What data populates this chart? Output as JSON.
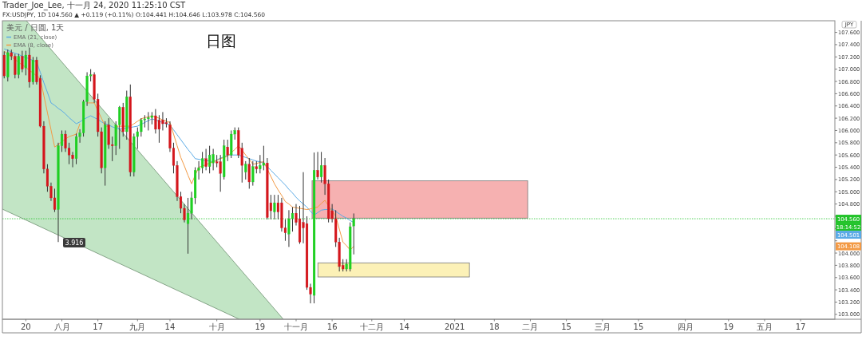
{
  "chart_data": {
    "type": "candlestick",
    "title": "日图",
    "subtitle": "Trader_Joe_Lee, 十一月 24, 2020 11:25:10 CST",
    "ylabel": "JPY",
    "legend_title": "美元 / 日圆, 1天",
    "legend": "top left",
    "annotations": [
      "FX:USDJPY, 1D 104.560 ▲ +0.119 (+0.11%) O:104.441 H:104.646 L:103.978 C:104.560",
      "3.916",
      "18:14:52",
      "104.501",
      "104.108"
    ],
    "ylim": [
      102.92,
      107.79
    ],
    "categories": [
      null,
      null,
      null,
      null,
      null,
      null,
      "20",
      null,
      null,
      null,
      null,
      null,
      null,
      null,
      null,
      null,
      "八月",
      null,
      null,
      null,
      null,
      null,
      null,
      null,
      null,
      null,
      "17",
      null,
      null,
      null,
      null,
      null,
      null,
      null,
      null,
      null,
      null,
      "九月",
      null,
      null,
      null,
      null,
      null,
      null,
      null,
      null,
      "14",
      null,
      null,
      null,
      null,
      null,
      null,
      null,
      null,
      null,
      null,
      null,
      null,
      "十月",
      null,
      null,
      null,
      null,
      null,
      null,
      null,
      null,
      null,
      null,
      null,
      "19",
      null,
      null,
      null,
      null,
      null,
      null,
      null,
      null,
      null,
      "十一月",
      null,
      null,
      null,
      null,
      null,
      null,
      null,
      null,
      null,
      "16",
      null,
      null,
      null,
      null,
      null,
      null,
      null,
      null,
      null,
      null,
      "十二月",
      null,
      null,
      null,
      null,
      null,
      null,
      null,
      null,
      "14",
      null,
      null,
      null,
      null,
      null,
      null,
      null,
      null,
      null,
      null,
      null,
      null,
      null,
      "2021",
      null,
      null,
      null,
      null,
      null,
      null,
      null,
      null,
      null,
      null,
      "18",
      null,
      null,
      null,
      null,
      null,
      null,
      null,
      null,
      null,
      "二月",
      null,
      null,
      null,
      null,
      null,
      null,
      null,
      null,
      null,
      "15",
      null,
      null,
      null,
      null,
      null,
      null,
      null,
      null,
      null,
      "三月",
      null,
      null,
      null,
      null,
      null,
      null,
      null,
      null,
      null,
      "15",
      null,
      null,
      null,
      null,
      null,
      null,
      null,
      null,
      null,
      null,
      null,
      null,
      "四月",
      null,
      null,
      null,
      null,
      null,
      null,
      null,
      null,
      null,
      null,
      null,
      "19",
      null,
      null,
      null,
      null,
      null,
      null,
      null,
      null,
      null,
      "五月",
      null,
      null,
      null,
      null,
      null,
      null,
      null,
      null,
      null,
      "17",
      null,
      null,
      null,
      null,
      null,
      null,
      null,
      null,
      null
    ],
    "yticks": [
      {
        "value": 103.0,
        "label": "103.000"
      },
      {
        "value": 103.2,
        "label": "103.200"
      },
      {
        "value": 103.4,
        "label": "103.400"
      },
      {
        "value": 103.6,
        "label": "103.600"
      },
      {
        "value": 103.8,
        "label": "103.800"
      },
      {
        "value": 104.0,
        "label": "104.000"
      },
      {
        "value": 104.2,
        "label": null
      },
      {
        "value": 104.4,
        "label": null
      },
      {
        "value": 104.6,
        "label": null
      },
      {
        "value": 104.8,
        "label": "104.800"
      },
      {
        "value": 105.0,
        "label": "105.000"
      },
      {
        "value": 105.2,
        "label": "105.200"
      },
      {
        "value": 105.4,
        "label": "105.400"
      },
      {
        "value": 105.6,
        "label": "105.600"
      },
      {
        "value": 105.8,
        "label": "105.800"
      },
      {
        "value": 106.0,
        "label": "106.000"
      },
      {
        "value": 106.2,
        "label": "106.200"
      },
      {
        "value": 106.4,
        "label": "106.400"
      },
      {
        "value": 106.6,
        "label": "106.600"
      },
      {
        "value": 106.8,
        "label": "106.800"
      },
      {
        "value": 107.0,
        "label": "107.000"
      },
      {
        "value": 107.2,
        "label": "107.200"
      },
      {
        "value": 107.4,
        "label": "107.400"
      },
      {
        "value": 107.6,
        "label": "107.600"
      }
    ],
    "ref_lines": [
      {
        "axis": "y",
        "value": 104.56,
        "label": "104.560",
        "color": "#22c32a",
        "line_style": "dotted"
      }
    ],
    "bands": [
      {
        "axis": "y",
        "from": 104.57,
        "to": 105.18,
        "color": "#f4a3a3"
      },
      {
        "axis": "y",
        "from": 103.61,
        "to": 103.84,
        "color": "#fbeeaa"
      }
    ],
    "ohlc": [
      [
        107.23,
        107.29,
        106.85,
        106.89
      ],
      [
        106.87,
        107.32,
        106.8,
        107.27
      ],
      [
        107.27,
        107.32,
        107.15,
        107.21
      ],
      [
        107.21,
        107.25,
        106.85,
        106.91
      ],
      [
        106.91,
        107.25,
        106.85,
        107.21
      ],
      [
        107.21,
        107.3,
        106.95,
        107.0
      ],
      [
        107.02,
        107.3,
        106.9,
        107.23
      ],
      [
        107.23,
        107.35,
        106.7,
        106.79
      ],
      [
        106.79,
        107.2,
        106.75,
        107.15
      ],
      [
        107.15,
        107.2,
        106.75,
        106.79
      ],
      [
        106.85,
        106.9,
        106.05,
        106.07
      ],
      [
        106.07,
        106.15,
        105.3,
        105.37
      ],
      [
        105.37,
        105.45,
        105.0,
        105.09
      ],
      [
        105.09,
        105.15,
        104.85,
        104.9
      ],
      [
        104.9,
        105.05,
        104.67,
        104.71
      ],
      [
        104.71,
        105.8,
        104.18,
        105.75
      ],
      [
        105.75,
        106.0,
        105.65,
        105.94
      ],
      [
        105.94,
        106.0,
        105.65,
        105.71
      ],
      [
        105.71,
        105.8,
        105.45,
        105.6
      ],
      [
        105.6,
        105.65,
        105.4,
        105.54
      ],
      [
        105.54,
        105.95,
        105.45,
        105.9
      ],
      [
        105.9,
        106.02,
        105.8,
        105.96
      ],
      [
        105.96,
        106.5,
        105.9,
        106.47
      ],
      [
        106.47,
        106.95,
        106.4,
        106.89
      ],
      [
        106.89,
        107.0,
        106.8,
        106.91
      ],
      [
        106.91,
        106.95,
        106.45,
        106.51
      ],
      [
        106.51,
        106.6,
        105.9,
        105.98
      ],
      [
        105.98,
        106.05,
        105.3,
        105.39
      ],
      [
        105.39,
        106.15,
        105.1,
        106.09
      ],
      [
        106.09,
        106.2,
        105.7,
        105.77
      ],
      [
        105.77,
        105.9,
        105.5,
        105.75
      ],
      [
        105.75,
        106.15,
        105.6,
        106.09
      ],
      [
        106.09,
        106.4,
        105.7,
        106.38
      ],
      [
        106.38,
        106.45,
        105.9,
        105.98
      ],
      [
        105.98,
        106.65,
        105.85,
        106.55
      ],
      [
        106.55,
        106.75,
        105.25,
        105.32
      ],
      [
        105.32,
        105.95,
        105.25,
        105.9
      ],
      [
        105.9,
        106.05,
        105.7,
        105.98
      ],
      [
        105.98,
        106.2,
        105.9,
        106.17
      ],
      [
        106.17,
        106.25,
        106.05,
        106.19
      ],
      [
        106.19,
        106.3,
        106.0,
        106.21
      ],
      [
        106.21,
        106.3,
        106.1,
        106.24
      ],
      [
        106.24,
        106.35,
        105.95,
        106.02
      ],
      [
        106.17,
        106.25,
        105.8,
        106.02
      ],
      [
        106.17,
        106.3,
        106.0,
        106.11
      ],
      [
        106.13,
        106.2,
        106.05,
        106.11
      ],
      [
        106.09,
        106.15,
        105.65,
        105.71
      ],
      [
        105.71,
        105.8,
        105.3,
        105.43
      ],
      [
        105.43,
        105.5,
        104.85,
        104.92
      ],
      [
        104.92,
        105.0,
        104.65,
        104.73
      ],
      [
        104.73,
        104.8,
        104.5,
        104.54
      ],
      [
        104.48,
        104.9,
        103.99,
        104.65
      ],
      [
        104.65,
        105.0,
        104.55,
        104.9
      ],
      [
        104.9,
        105.4,
        104.8,
        105.35
      ],
      [
        105.35,
        105.5,
        105.2,
        105.39
      ],
      [
        105.39,
        105.65,
        105.3,
        105.54
      ],
      [
        105.54,
        105.7,
        105.35,
        105.41
      ],
      [
        105.41,
        105.75,
        105.3,
        105.6
      ],
      [
        105.47,
        105.7,
        105.35,
        105.61
      ],
      [
        105.49,
        105.6,
        105.4,
        105.47
      ],
      [
        105.49,
        105.6,
        105.0,
        105.3
      ],
      [
        105.24,
        105.85,
        105.2,
        105.75
      ],
      [
        105.73,
        105.85,
        105.5,
        105.6
      ],
      [
        105.6,
        106.0,
        105.55,
        105.94
      ],
      [
        105.94,
        106.05,
        105.85,
        106.0
      ],
      [
        106.0,
        106.05,
        105.55,
        105.6
      ],
      [
        105.71,
        105.8,
        105.15,
        105.43
      ],
      [
        105.32,
        105.5,
        105.2,
        105.45
      ],
      [
        105.45,
        105.55,
        105.05,
        105.16
      ],
      [
        105.16,
        105.5,
        105.1,
        105.41
      ],
      [
        105.41,
        105.5,
        105.3,
        105.37
      ],
      [
        105.37,
        105.6,
        105.3,
        105.43
      ],
      [
        105.43,
        105.75,
        105.35,
        105.47
      ],
      [
        105.47,
        105.55,
        104.55,
        104.58
      ],
      [
        104.82,
        104.95,
        104.55,
        104.69
      ],
      [
        104.67,
        104.95,
        104.55,
        104.82
      ],
      [
        104.82,
        104.95,
        104.55,
        104.67
      ],
      [
        104.82,
        104.9,
        104.35,
        104.41
      ],
      [
        104.41,
        104.55,
        104.2,
        104.33
      ],
      [
        104.31,
        104.7,
        104.1,
        104.56
      ],
      [
        104.56,
        104.75,
        104.35,
        104.65
      ],
      [
        104.65,
        104.8,
        104.45,
        104.5
      ],
      [
        104.56,
        104.77,
        104.15,
        104.18
      ],
      [
        104.5,
        105.32,
        104.16,
        104.41
      ],
      [
        104.48,
        104.6,
        103.4,
        103.44
      ],
      [
        103.44,
        103.5,
        103.18,
        103.33
      ],
      [
        103.31,
        105.64,
        103.18,
        105.35
      ],
      [
        105.35,
        105.65,
        105.2,
        105.24
      ],
      [
        105.24,
        105.65,
        105.15,
        105.43
      ],
      [
        105.43,
        105.55,
        104.95,
        105.13
      ],
      [
        105.13,
        105.2,
        104.5,
        104.56
      ],
      [
        104.69,
        104.8,
        104.5,
        104.56
      ],
      [
        104.56,
        104.7,
        104.1,
        104.18
      ],
      [
        104.18,
        104.25,
        103.7,
        103.78
      ],
      [
        103.8,
        103.9,
        103.7,
        103.74
      ],
      [
        103.74,
        103.9,
        103.7,
        103.82
      ],
      [
        103.74,
        104.5,
        103.7,
        104.43
      ],
      [
        104.441,
        104.646,
        103.978,
        104.56
      ],
      null,
      null,
      null,
      null,
      null,
      null,
      null,
      null,
      null,
      null,
      null,
      null,
      null,
      null,
      null,
      null,
      null,
      null,
      null,
      null,
      null,
      null,
      null,
      null,
      null,
      null,
      null,
      null,
      null,
      null,
      null,
      null,
      null,
      null,
      null,
      null,
      null,
      null,
      null,
      null,
      null,
      null,
      null,
      null,
      null,
      null,
      null,
      null,
      null,
      null,
      null,
      null,
      null,
      null,
      null,
      null,
      null,
      null,
      null,
      null,
      null,
      null,
      null,
      null,
      null,
      null,
      null,
      null,
      null,
      null,
      null,
      null,
      null,
      null,
      null,
      null,
      null,
      null,
      null,
      null,
      null,
      null,
      null,
      null,
      null,
      null,
      null,
      null,
      null,
      null,
      null,
      null,
      null,
      null,
      null,
      null,
      null,
      null,
      null,
      null,
      null,
      null,
      null,
      null,
      null,
      null,
      null,
      null,
      null,
      null,
      null,
      null,
      null,
      null,
      null,
      null,
      null,
      null,
      null,
      null,
      null,
      null,
      null,
      null,
      null,
      null,
      null,
      null,
      null,
      null,
      null,
      null,
      null
    ],
    "series": [
      {
        "name": "EMA (21, close)",
        "type": "line",
        "color": "#5aaae6",
        "values": [
          107.33,
          107.31,
          107.28,
          107.26,
          107.24,
          107.21,
          107.19,
          107.17,
          107.14,
          107.12,
          106.95,
          106.78,
          106.62,
          106.45,
          106.41,
          106.36,
          106.32,
          106.27,
          106.21,
          106.16,
          106.11,
          106.14,
          106.18,
          106.21,
          106.24,
          106.21,
          106.18,
          106.14,
          106.11,
          106.09,
          106.06,
          106.04,
          106.02,
          106.03,
          106.04,
          106.05,
          106.06,
          106.07,
          106.1,
          106.13,
          106.16,
          106.19,
          106.17,
          106.15,
          106.13,
          106.11,
          106.09,
          106.01,
          105.93,
          105.85,
          105.77,
          105.69,
          105.62,
          105.54,
          105.53,
          105.52,
          105.51,
          105.5,
          105.49,
          105.52,
          105.55,
          105.57,
          105.6,
          105.6,
          105.6,
          105.6,
          105.58,
          105.56,
          105.54,
          105.52,
          105.5,
          105.49,
          105.47,
          105.41,
          105.35,
          105.29,
          105.23,
          105.17,
          105.11,
          105.04,
          104.98,
          104.91,
          104.85,
          104.8,
          104.75,
          104.68,
          104.62,
          104.66,
          104.7,
          104.71,
          104.71,
          104.72,
          104.68,
          104.64,
          104.6,
          104.57,
          104.53,
          104.5,
          null,
          null,
          null,
          null,
          null,
          null,
          null,
          null,
          null,
          null,
          null,
          null,
          null,
          null,
          null,
          null,
          null,
          null,
          null,
          null,
          null,
          null,
          null,
          null,
          null,
          null,
          null,
          null,
          null,
          null,
          null,
          null,
          null,
          null,
          null,
          null,
          null,
          null,
          null,
          null,
          null,
          null,
          null,
          null,
          null,
          null,
          null,
          null,
          null,
          null,
          null,
          null,
          null,
          null,
          null,
          null,
          null,
          null,
          null,
          null,
          null,
          null,
          null,
          null,
          null,
          null,
          null,
          null,
          null,
          null,
          null,
          null,
          null,
          null,
          null,
          null,
          null,
          null,
          null,
          null,
          null,
          null,
          null,
          null,
          null,
          null,
          null,
          null,
          null,
          null,
          null,
          null,
          null,
          null,
          null,
          null,
          null,
          null,
          null,
          null,
          null,
          null,
          null,
          null,
          null,
          null,
          null,
          null,
          null,
          null,
          null,
          null,
          null,
          null,
          null,
          null,
          null,
          null,
          null,
          null,
          null,
          null,
          null,
          null,
          null,
          null,
          null,
          null,
          null,
          null,
          null,
          null,
          null
        ]
      },
      {
        "name": "EMA (8, close)",
        "type": "line",
        "color": "#f39a45",
        "values": [
          107.29,
          107.25,
          107.2,
          107.16,
          107.11,
          107.07,
          107.03,
          106.98,
          106.94,
          106.89,
          106.85,
          106.57,
          106.29,
          106.01,
          105.73,
          105.77,
          105.82,
          105.86,
          105.9,
          105.92,
          105.94,
          106.11,
          null,
          106.45,
          106.45,
          106.45,
          106.32,
          106.2,
          106.07,
          106.07,
          null,
          106.07,
          106.07,
          106.07,
          106.07,
          106.07,
          106.11,
          106.15,
          106.19,
          106.21,
          106.22,
          106.24,
          106.22,
          106.2,
          106.17,
          106.15,
          106.13,
          105.94,
          105.75,
          105.56,
          105.42,
          105.27,
          105.13,
          105.27,
          105.4,
          105.42,
          105.44,
          105.47,
          105.49,
          105.51,
          105.54,
          105.56,
          105.58,
          105.64,
          105.69,
          105.75,
          105.68,
          105.6,
          105.53,
          105.45,
          105.46,
          105.48,
          105.49,
          105.37,
          105.25,
          105.13,
          105.03,
          104.94,
          104.84,
          104.8,
          104.75,
          104.74,
          104.73,
          104.72,
          104.71,
          104.72,
          104.74,
          104.75,
          104.81,
          104.86,
          104.77,
          104.69,
          104.6,
          104.39,
          104.18,
          104.12,
          104.05,
          104.11,
          null,
          null,
          null,
          null,
          null,
          null,
          null,
          null,
          null,
          null,
          null,
          null,
          null,
          null,
          null,
          null,
          null,
          null,
          null,
          null,
          null,
          null,
          null,
          null,
          null,
          null,
          null,
          null,
          null,
          null,
          null,
          null,
          null,
          null,
          null,
          null,
          null,
          null,
          null,
          null,
          null,
          null,
          null,
          null,
          null,
          null,
          null,
          null,
          null,
          null,
          null,
          null,
          null,
          null,
          null,
          null,
          null,
          null,
          null,
          null,
          null,
          null,
          null,
          null,
          null,
          null,
          null,
          null,
          null,
          null,
          null,
          null,
          null,
          null,
          null,
          null,
          null,
          null,
          null,
          null,
          null,
          null,
          null,
          null,
          null,
          null,
          null,
          null,
          null,
          null,
          null,
          null,
          null,
          null,
          null,
          null,
          null,
          null,
          null,
          null,
          null,
          null,
          null,
          null,
          null,
          null,
          null,
          null,
          null,
          null,
          null,
          null,
          null,
          null,
          null,
          null,
          null,
          null,
          null,
          null,
          null,
          null,
          null,
          null,
          null,
          null,
          null,
          null,
          null,
          null,
          null,
          null,
          null
        ]
      }
    ]
  }
}
